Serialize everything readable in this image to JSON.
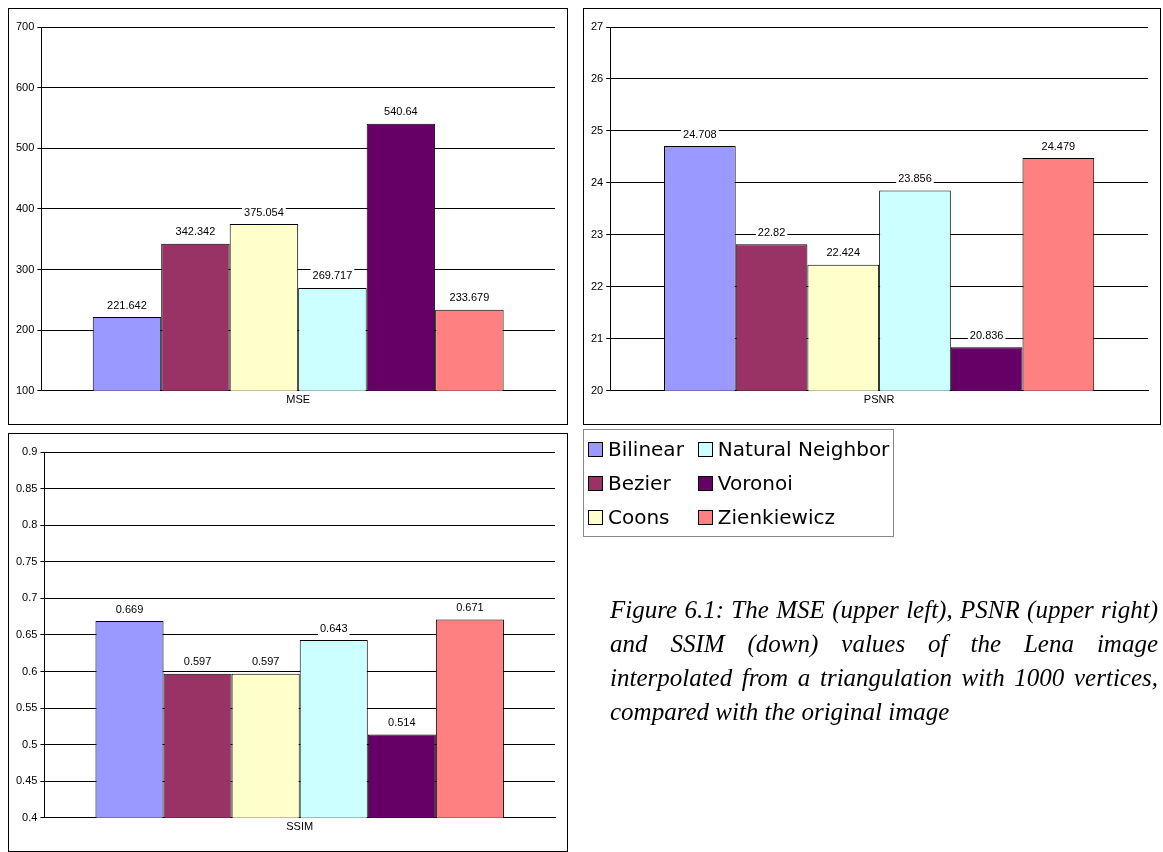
{
  "chart_data": [
    {
      "type": "bar",
      "categories": [
        "MSE"
      ],
      "series": [
        {
          "color": "#9999ff",
          "values": [
            221.642
          ]
        },
        {
          "color": "#993366",
          "values": [
            342.342
          ]
        },
        {
          "color": "#ffffcc",
          "values": [
            375.054
          ]
        },
        {
          "color": "#ccffff",
          "values": [
            269.717
          ]
        },
        {
          "color": "#660066",
          "values": [
            540.64
          ]
        },
        {
          "color": "#ff8080",
          "values": [
            233.679
          ]
        }
      ],
      "ylim": [
        100,
        700
      ],
      "yticks": [
        100,
        200,
        300,
        400,
        500,
        600,
        700
      ],
      "grid": "y",
      "data_labels": true
    },
    {
      "type": "bar",
      "categories": [
        "PSNR"
      ],
      "series": [
        {
          "name": "Bilinear",
          "color": "#9999ff",
          "values": [
            24.708
          ]
        },
        {
          "name": "Bezier",
          "color": "#993366",
          "values": [
            22.82
          ]
        },
        {
          "name": "Coons",
          "color": "#ffffcc",
          "values": [
            22.424
          ]
        },
        {
          "name": "Natural Neighbor",
          "color": "#ccffff",
          "values": [
            23.856
          ]
        },
        {
          "name": "Voronoi",
          "color": "#660066",
          "values": [
            20.836
          ]
        },
        {
          "name": "Zienkiewicz",
          "color": "#ff8080",
          "values": [
            24.479
          ]
        }
      ],
      "ylim": [
        20,
        27
      ],
      "yticks": [
        20,
        21,
        22,
        23,
        24,
        25,
        26,
        27
      ],
      "grid": "y",
      "data_labels": true,
      "legend": "bottom"
    },
    {
      "type": "bar",
      "categories": [
        "SSIM"
      ],
      "series": [
        {
          "color": "#9999ff",
          "values": [
            0.669
          ]
        },
        {
          "color": "#993366",
          "values": [
            0.597
          ]
        },
        {
          "color": "#ffffcc",
          "values": [
            0.597
          ]
        },
        {
          "color": "#ccffff",
          "values": [
            0.643
          ]
        },
        {
          "color": "#660066",
          "values": [
            0.514
          ]
        },
        {
          "color": "#ff8080",
          "values": [
            0.671
          ]
        }
      ],
      "ylim": [
        0.4,
        0.9
      ],
      "yticks": [
        0.4,
        0.45,
        0.5,
        0.55,
        0.6,
        0.65,
        0.7,
        0.75,
        0.8,
        0.85,
        0.9
      ],
      "grid": "y",
      "data_labels": true,
      "annotations": [
        "Figure 6.1: The MSE (upper left), PSNR (upper right) and SSIM (down) values of the Lena image interpolated from a triangulation with 1000 vertices, compared with the original image"
      ]
    }
  ]
}
